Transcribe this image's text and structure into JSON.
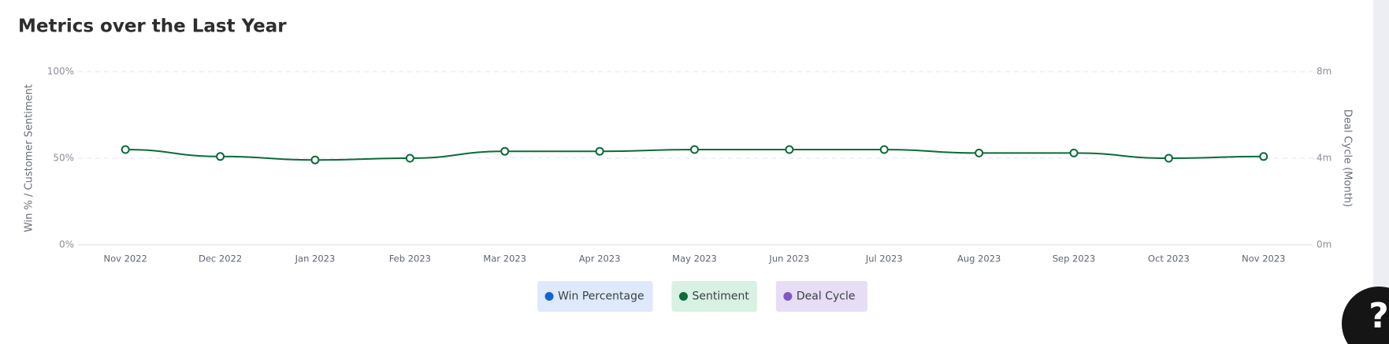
{
  "chart_data": {
    "type": "line",
    "title": "Metrics over the Last Year",
    "y_label": "Win % / Customer Sentiment",
    "y2_label": "Deal Cycle (Month)",
    "categories": [
      "Nov 2022",
      "Dec 2022",
      "Jan 2023",
      "Feb 2023",
      "Mar 2023",
      "Apr 2023",
      "May 2023",
      "Jun 2023",
      "Jul 2023",
      "Aug 2023",
      "Sep 2023",
      "Oct 2023",
      "Nov 2023"
    ],
    "series": [
      {
        "name": "Win Percentage",
        "color": "#1463d6",
        "values": [
          null,
          null,
          null,
          null,
          null,
          null,
          null,
          null,
          null,
          null,
          null,
          null,
          null
        ]
      },
      {
        "name": "Sentiment",
        "color": "#0b6b3a",
        "values": [
          55,
          51,
          49,
          50,
          54,
          54,
          55,
          55,
          55,
          53,
          53,
          50,
          51
        ]
      },
      {
        "name": "Deal Cycle",
        "color": "#7e57c8",
        "axis": "y2",
        "values": [
          null,
          null,
          null,
          null,
          null,
          null,
          null,
          null,
          null,
          null,
          null,
          null,
          null
        ]
      }
    ],
    "ylim": [
      0,
      100
    ],
    "yticks": [
      {
        "value": 0,
        "label": "0%"
      },
      {
        "value": 50,
        "label": "50%"
      },
      {
        "value": 100,
        "label": "100%"
      }
    ],
    "y2lim": [
      0,
      8
    ],
    "y2ticks": [
      {
        "value": 0,
        "label": "0m"
      },
      {
        "value": 4,
        "label": "4m"
      },
      {
        "value": 8,
        "label": "8m"
      }
    ],
    "grid": true,
    "legend": "bottom"
  },
  "help_label": "?"
}
